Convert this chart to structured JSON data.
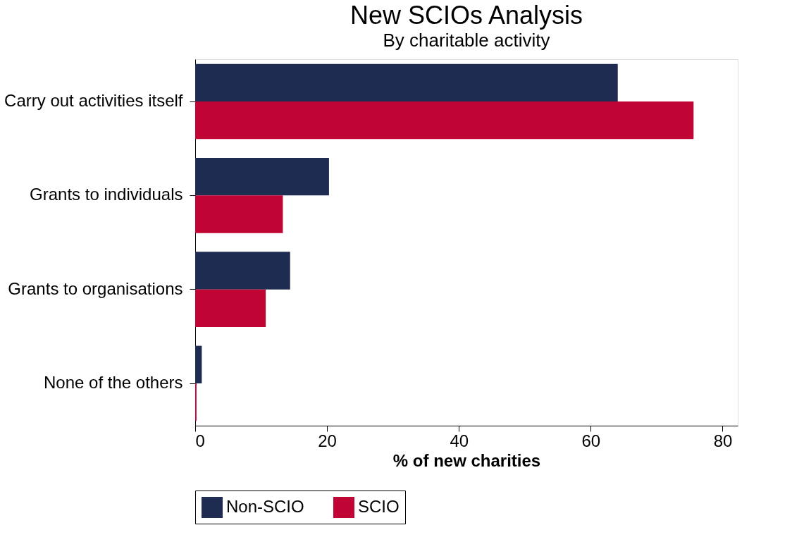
{
  "chart_data": {
    "type": "bar",
    "orientation": "horizontal",
    "title": "New SCIOs Analysis",
    "subtitle": "By charitable activity",
    "xlabel": "% of new charities",
    "categories": [
      "Carry out activities itself",
      "Grants to individuals",
      "Grants to organisations",
      "None of the others"
    ],
    "series": [
      {
        "name": "Non-SCIO",
        "color": "#1f2c52",
        "values": [
          64.1,
          20.3,
          14.4,
          1.0
        ]
      },
      {
        "name": "SCIO",
        "color": "#c00534",
        "values": [
          75.6,
          13.3,
          10.7,
          0.2
        ]
      }
    ],
    "xlim": [
      0,
      82.3
    ],
    "xticks": [
      0,
      20,
      40,
      60,
      80
    ],
    "grid": false,
    "legend": "bottom"
  }
}
